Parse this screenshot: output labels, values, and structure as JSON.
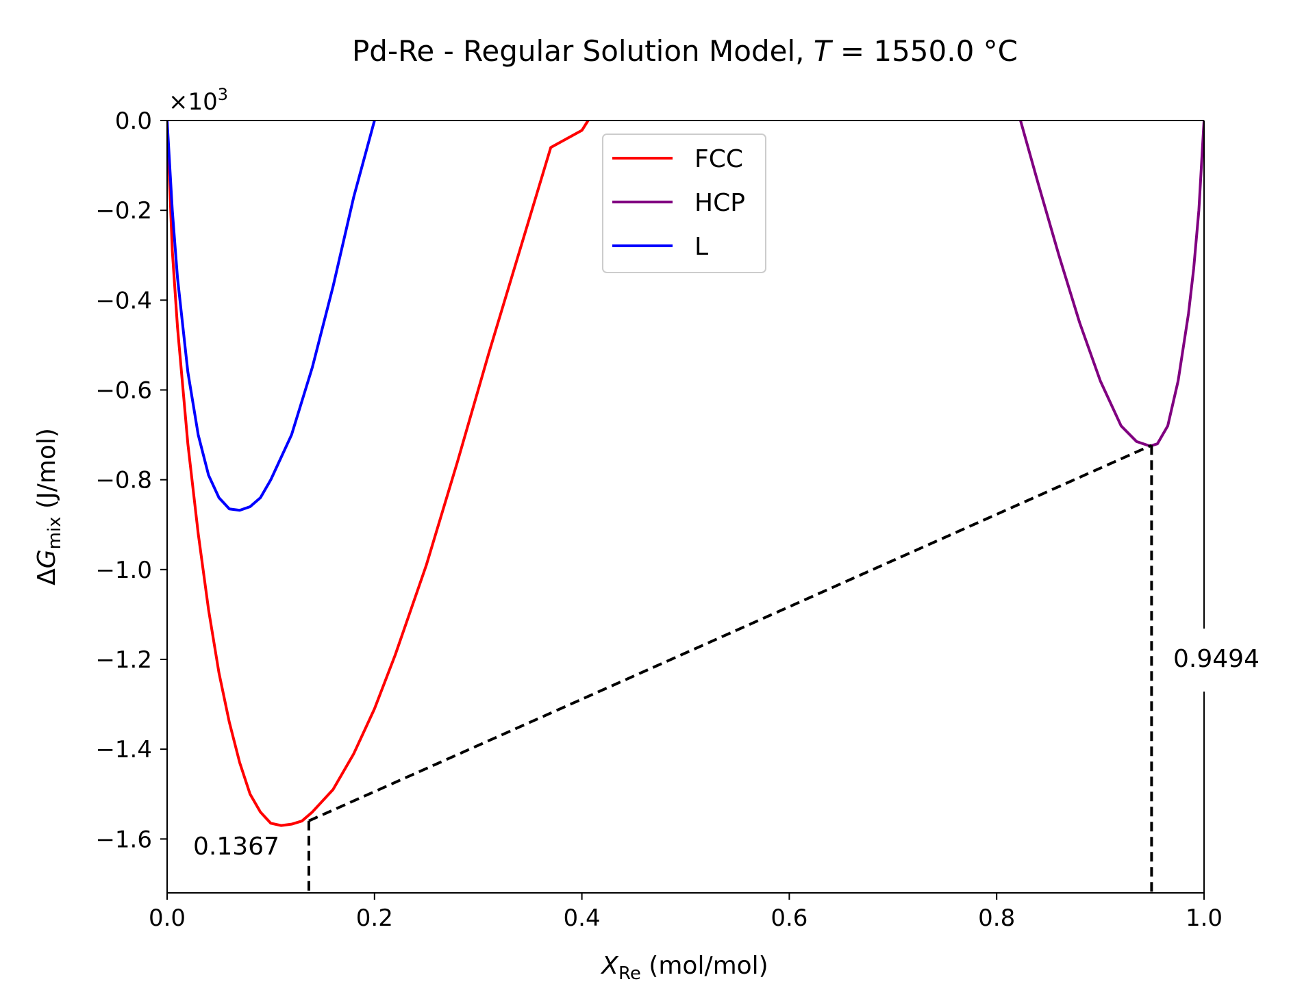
{
  "chart_data": {
    "type": "line",
    "title_main": "Pd-Re - Regular Solution Model, ",
    "title_var": "T",
    "title_rest": " = 1550.0 °C",
    "xlabel_var": "X",
    "xlabel_sub": "Re",
    "xlabel_unit": " (mol/mol)",
    "ylabel_prefix": "ΔG",
    "ylabel_sub": "mix",
    "ylabel_unit": " (J/mol)",
    "y_offset_base": "×10",
    "y_offset_exp": "3",
    "xlim": [
      0.0,
      1.0
    ],
    "ylim": [
      -1.72,
      0.0
    ],
    "x_ticks": [
      0.0,
      0.2,
      0.4,
      0.6,
      0.8,
      1.0
    ],
    "x_tick_labels": [
      "0.0",
      "0.2",
      "0.4",
      "0.6",
      "0.8",
      "1.0"
    ],
    "y_ticks": [
      0.0,
      -0.2,
      -0.4,
      -0.6,
      -0.8,
      -1.0,
      -1.2,
      -1.4,
      -1.6
    ],
    "y_tick_labels": [
      "0.0",
      "−0.2",
      "−0.4",
      "−0.6",
      "−0.8",
      "−1.0",
      "−1.2",
      "−1.4",
      "−1.6"
    ],
    "grid": false,
    "legend_position": "top-center",
    "series": [
      {
        "name": "FCC",
        "color": "#ff0000",
        "x": [
          0.0,
          0.005,
          0.01,
          0.02,
          0.03,
          0.04,
          0.05,
          0.06,
          0.07,
          0.08,
          0.09,
          0.1,
          0.11,
          0.12,
          0.13,
          0.14,
          0.16,
          0.18,
          0.2,
          0.22,
          0.25,
          0.28,
          0.31,
          0.34,
          0.37,
          0.4,
          0.406
        ],
        "y": [
          0.0,
          -0.29,
          -0.46,
          -0.72,
          -0.92,
          -1.09,
          -1.23,
          -1.34,
          -1.43,
          -1.5,
          -1.54,
          -1.565,
          -1.57,
          -1.567,
          -1.56,
          -1.54,
          -1.49,
          -1.41,
          -1.31,
          -1.19,
          -0.99,
          -0.76,
          -0.52,
          -0.29,
          -0.06,
          -0.022,
          0.0
        ]
      },
      {
        "name": "HCP",
        "color": "#800080",
        "x": [
          0.823,
          0.84,
          0.86,
          0.88,
          0.9,
          0.92,
          0.935,
          0.948,
          0.955,
          0.965,
          0.975,
          0.985,
          0.99,
          0.995,
          1.0
        ],
        "y": [
          0.0,
          -0.14,
          -0.3,
          -0.45,
          -0.58,
          -0.68,
          -0.715,
          -0.725,
          -0.72,
          -0.68,
          -0.58,
          -0.43,
          -0.33,
          -0.2,
          0.0
        ]
      },
      {
        "name": "L",
        "color": "#0000ff",
        "x": [
          0.0,
          0.005,
          0.01,
          0.02,
          0.03,
          0.04,
          0.05,
          0.06,
          0.07,
          0.08,
          0.09,
          0.1,
          0.12,
          0.14,
          0.16,
          0.18,
          0.2
        ],
        "y": [
          0.0,
          -0.2,
          -0.35,
          -0.56,
          -0.7,
          -0.79,
          -0.84,
          -0.865,
          -0.868,
          -0.86,
          -0.84,
          -0.8,
          -0.7,
          -0.55,
          -0.37,
          -0.17,
          0.0
        ]
      }
    ],
    "tangent_line": {
      "x": [
        0.1367,
        0.9494
      ],
      "y": [
        -1.5596,
        -0.7232
      ],
      "style": "dashed",
      "color": "#000000"
    },
    "annotations": [
      {
        "text": "0.1367",
        "x": 0.1367
      },
      {
        "text": "0.9494",
        "x": 0.9494
      }
    ]
  }
}
